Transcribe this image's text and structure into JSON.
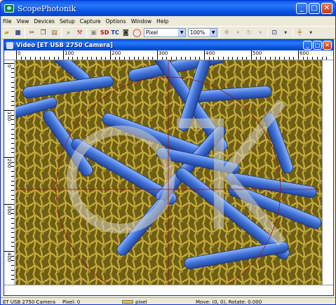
{
  "app": {
    "title": "ScopePhotonik"
  },
  "menu": [
    "File",
    "View",
    "Devices",
    "Setup",
    "Capture",
    "Options",
    "Window",
    "Help"
  ],
  "toolbar": {
    "sd_label": "SD",
    "tc_label": "TC",
    "unit_value": "Pixel",
    "zoom_value": "100%"
  },
  "child_window": {
    "title": "Video [ET USB 2750 Camera]"
  },
  "ruler": {
    "h_labels": [
      "0",
      "100",
      "200",
      "300",
      "400",
      "500",
      "600"
    ],
    "v_labels": [
      "0",
      "100",
      "200",
      "300",
      "400"
    ]
  },
  "status": {
    "camera": "ET USB 2750 Camera",
    "pixel": "Pixel: 0",
    "unit": "pixel",
    "move": "Move: (0, 0), Rotate: 0.000"
  },
  "colors": {
    "titlebar": "#0a58e6",
    "background": "#7d6d1d",
    "bacteria": "#4a7fd8"
  }
}
